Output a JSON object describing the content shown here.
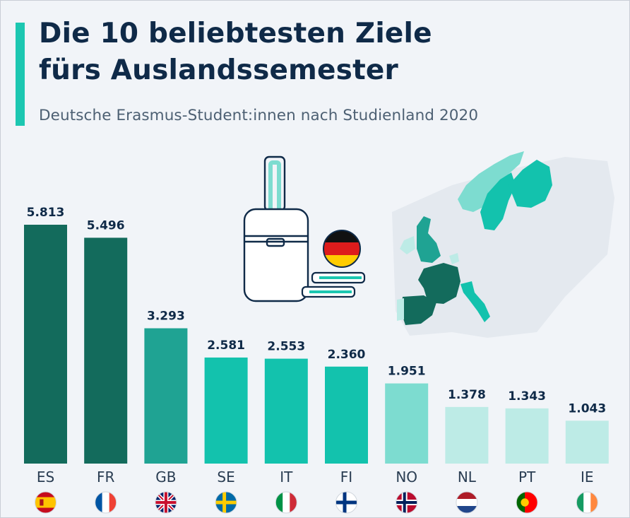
{
  "header": {
    "title_line1": "Die 10 beliebtesten Ziele",
    "title_line2": "fürs Auslandssemester",
    "subtitle": "Deutsche Erasmus-Student:innen nach Studienland 2020"
  },
  "colors": {
    "accent": "#1cc7b1",
    "dark": "#136b5c",
    "medium": "#1fa393",
    "bright": "#13c2ad",
    "light": "#7ddcd0",
    "pale": "#bdebe6",
    "title": "#0f2a48",
    "background": "#f1f4f8"
  },
  "illustration": {
    "luggage_icon": "suitcase-icon",
    "books_icon": "books-icon",
    "flag_icon": "germany-flag-icon",
    "map_icon": "europe-map"
  },
  "chart_data": {
    "type": "bar",
    "title": "Die 10 beliebtesten Ziele fürs Auslandssemester",
    "subtitle": "Deutsche Erasmus-Student:innen nach Studienland 2020",
    "categories": [
      "ES",
      "FR",
      "GB",
      "SE",
      "IT",
      "FI",
      "NO",
      "NL",
      "PT",
      "IE"
    ],
    "values": [
      5813,
      5496,
      3293,
      2581,
      2553,
      2360,
      1951,
      1378,
      1343,
      1043
    ],
    "value_labels": [
      "5.813",
      "5.496",
      "3.293",
      "2.581",
      "2.553",
      "2.360",
      "1.951",
      "1.378",
      "1.343",
      "1.043"
    ],
    "bar_colors": [
      "#136b5c",
      "#136b5c",
      "#1fa393",
      "#13c2ad",
      "#13c2ad",
      "#13c2ad",
      "#7ddcd0",
      "#bdebe6",
      "#bdebe6",
      "#bdebe6"
    ],
    "flags": [
      "flag-es-icon",
      "flag-fr-icon",
      "flag-gb-icon",
      "flag-se-icon",
      "flag-it-icon",
      "flag-fi-icon",
      "flag-no-icon",
      "flag-nl-icon",
      "flag-pt-icon",
      "flag-ie-icon"
    ],
    "ylim": [
      0,
      5813
    ],
    "xlabel": "",
    "ylabel": "",
    "grid": false,
    "legend": "none"
  }
}
